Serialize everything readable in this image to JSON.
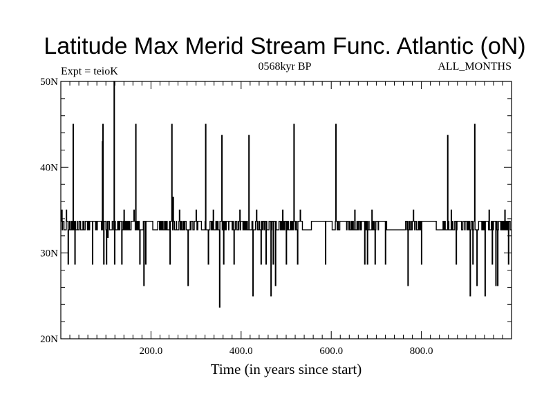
{
  "chart_data": {
    "type": "line",
    "title": "Latitude Max Merid Stream Func. Atlantic (oN)",
    "subtitle_left": "Expt = teioK",
    "subtitle_center": "0568kyr BP",
    "subtitle_right": "ALL_MONTHS",
    "xlabel": "Time (in years since start)",
    "ylabel": "",
    "xlim": [
      0,
      1000
    ],
    "ylim": [
      20,
      50
    ],
    "xticks": [
      200,
      400,
      600,
      800
    ],
    "xtick_labels": [
      "200.0",
      "400.0",
      "600.0",
      "800.0"
    ],
    "yticks": [
      20,
      30,
      40,
      50
    ],
    "ytick_labels": [
      "20N",
      "30N",
      "40N",
      "50N"
    ],
    "grid": false,
    "line_color": "#000000",
    "baseline_levels": [
      32.7,
      33.7
    ],
    "excursions": [
      [
        2,
        35.0
      ],
      [
        8,
        32.7
      ],
      [
        12,
        35.0
      ],
      [
        16,
        28.7
      ],
      [
        27,
        45.0
      ],
      [
        31,
        28.7
      ],
      [
        45,
        32.7
      ],
      [
        60,
        32.7
      ],
      [
        70,
        28.7
      ],
      [
        92,
        43.0
      ],
      [
        93,
        45.0
      ],
      [
        95,
        28.7
      ],
      [
        101,
        28.7
      ],
      [
        104,
        31.8
      ],
      [
        118,
        50.0
      ],
      [
        119,
        28.7
      ],
      [
        135,
        28.7
      ],
      [
        140,
        35.0
      ],
      [
        162,
        35.0
      ],
      [
        166,
        45.0
      ],
      [
        175,
        28.7
      ],
      [
        184,
        26.2
      ],
      [
        188,
        28.7
      ],
      [
        219,
        32.7
      ],
      [
        242,
        28.7
      ],
      [
        246,
        45.0
      ],
      [
        249,
        36.5
      ],
      [
        263,
        35.0
      ],
      [
        282,
        26.2
      ],
      [
        300,
        35.0
      ],
      [
        321,
        45.0
      ],
      [
        327,
        28.7
      ],
      [
        338,
        35.0
      ],
      [
        352,
        23.7
      ],
      [
        357,
        43.7
      ],
      [
        361,
        28.7
      ],
      [
        384,
        28.7
      ],
      [
        397,
        35.0
      ],
      [
        417,
        43.7
      ],
      [
        426,
        25.0
      ],
      [
        434,
        35.0
      ],
      [
        444,
        28.7
      ],
      [
        455,
        28.7
      ],
      [
        466,
        25.0
      ],
      [
        471,
        28.7
      ],
      [
        476,
        26.2
      ],
      [
        492,
        35.0
      ],
      [
        500,
        28.7
      ],
      [
        517,
        45.0
      ],
      [
        525,
        28.7
      ],
      [
        531,
        35.0
      ],
      [
        587,
        28.7
      ],
      [
        610,
        45.0
      ],
      [
        652,
        35.0
      ],
      [
        674,
        28.7
      ],
      [
        680,
        28.7
      ],
      [
        690,
        35.0
      ],
      [
        697,
        28.7
      ],
      [
        720,
        28.7
      ],
      [
        770,
        26.2
      ],
      [
        782,
        35.0
      ],
      [
        800,
        28.7
      ],
      [
        858,
        43.7
      ],
      [
        866,
        35.0
      ],
      [
        877,
        28.7
      ],
      [
        908,
        25.0
      ],
      [
        914,
        28.7
      ],
      [
        918,
        45.0
      ],
      [
        923,
        26.2
      ],
      [
        941,
        25.0
      ],
      [
        950,
        35.0
      ],
      [
        957,
        28.7
      ],
      [
        965,
        26.2
      ],
      [
        969,
        26.2
      ],
      [
        985,
        35.0
      ],
      [
        993,
        28.7
      ]
    ]
  }
}
